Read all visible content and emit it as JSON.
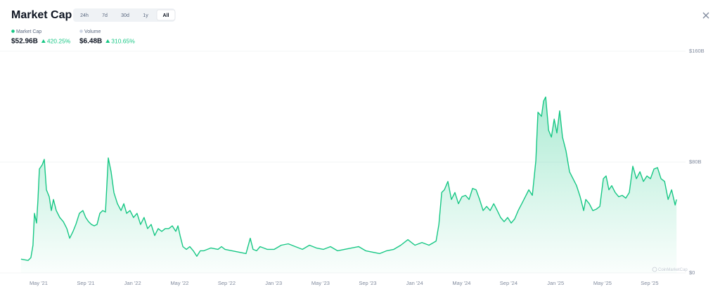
{
  "header": {
    "title": "Market Cap",
    "tabs": [
      "24h",
      "7d",
      "30d",
      "1y",
      "All"
    ],
    "active_tab": 4,
    "stats": [
      {
        "name": "Market Cap",
        "value": "$52.96B",
        "change": "420.25%",
        "color": "#16c784"
      },
      {
        "name": "Volume",
        "value": "$6.48B",
        "change": "310.65%",
        "color": "#cfd6e4"
      }
    ],
    "watermark": "CoinMarketCap"
  },
  "chart_data": {
    "type": "area",
    "x": [
      2021.208,
      2021.258,
      2021.278,
      2021.293,
      2021.303,
      2021.318,
      2021.328,
      2021.338,
      2021.358,
      2021.373,
      2021.388,
      2021.408,
      2021.423,
      2021.438,
      2021.458,
      2021.483,
      2021.508,
      2021.533,
      2021.553,
      2021.577,
      2021.597,
      2021.622,
      2021.647,
      2021.667,
      2021.687,
      2021.707,
      2021.727,
      2021.747,
      2021.767,
      2021.787,
      2021.807,
      2021.827,
      2021.847,
      2021.867,
      2021.892,
      2021.917,
      2021.937,
      2021.957,
      2021.981,
      2022.006,
      2022.031,
      2022.056,
      2022.081,
      2022.106,
      2022.131,
      2022.156,
      2022.181,
      2022.206,
      2022.231,
      2022.256,
      2022.281,
      2022.306,
      2022.321,
      2022.336,
      2022.356,
      2022.381,
      2022.405,
      2022.43,
      2022.455,
      2022.48,
      2022.505,
      2022.555,
      2022.605,
      2022.63,
      2022.655,
      2022.705,
      2022.755,
      2022.804,
      2022.834,
      2022.854,
      2022.879,
      2022.904,
      2022.954,
      2023.004,
      2023.054,
      2023.104,
      2023.154,
      2023.204,
      2023.254,
      2023.303,
      2023.353,
      2023.403,
      2023.453,
      2023.503,
      2023.553,
      2023.603,
      2023.653,
      2023.703,
      2023.752,
      2023.802,
      2023.852,
      2023.902,
      2023.952,
      2024.002,
      2024.052,
      2024.102,
      2024.152,
      2024.172,
      2024.192,
      2024.211,
      2024.236,
      2024.261,
      2024.286,
      2024.311,
      2024.336,
      2024.361,
      2024.386,
      2024.411,
      2024.436,
      2024.461,
      2024.486,
      2024.511,
      2024.536,
      2024.561,
      2024.586,
      2024.61,
      2024.635,
      2024.66,
      2024.685,
      2024.71,
      2024.735,
      2024.76,
      2024.785,
      2024.81,
      2024.835,
      2024.86,
      2024.875,
      2024.9,
      2024.915,
      2024.93,
      2024.95,
      2024.97,
      2024.99,
      2025.009,
      2025.029,
      2025.049,
      2025.074,
      2025.099,
      2025.124,
      2025.149,
      2025.174,
      2025.199,
      2025.214,
      2025.239,
      2025.264,
      2025.289,
      2025.314,
      2025.339,
      2025.358,
      2025.378,
      2025.398,
      2025.423,
      2025.448,
      2025.473,
      2025.498,
      2025.523,
      2025.548,
      2025.573,
      2025.598,
      2025.623,
      2025.648,
      2025.673,
      2025.698,
      2025.723,
      2025.748,
      2025.773,
      2025.798,
      2025.823,
      2025.848,
      2025.858
    ],
    "series": [
      {
        "name": "Market Cap",
        "color": "#16c784",
        "values": [
          10,
          9,
          11,
          20,
          43,
          36,
          53,
          75,
          78,
          82,
          60,
          55,
          45,
          53,
          45,
          40,
          37,
          32,
          25,
          30,
          35,
          43,
          45,
          40,
          37,
          35,
          34,
          35,
          43,
          45,
          44,
          83,
          73,
          58,
          50,
          45,
          50,
          43,
          45,
          40,
          43,
          35,
          40,
          32,
          35,
          27,
          32,
          30,
          32,
          32,
          34,
          30,
          34,
          27,
          19,
          17,
          19,
          16,
          12,
          16,
          16,
          18,
          17,
          19,
          17,
          16,
          15,
          14,
          25,
          17,
          16,
          19,
          17,
          17,
          20,
          21,
          19,
          17,
          20,
          18,
          17,
          19,
          16,
          17,
          18,
          19,
          16,
          15,
          14,
          16,
          17,
          20,
          24,
          20,
          22,
          20,
          23,
          35,
          58,
          60,
          66,
          53,
          58,
          50,
          55,
          56,
          53,
          61,
          60,
          53,
          45,
          48,
          45,
          50,
          45,
          40,
          37,
          40,
          36,
          39,
          45,
          50,
          55,
          60,
          56,
          81,
          116,
          113,
          124,
          127,
          103,
          98,
          111,
          101,
          117,
          98,
          88,
          73,
          68,
          63,
          55,
          45,
          53,
          50,
          45,
          46,
          48,
          68,
          70,
          60,
          63,
          58,
          55,
          56,
          54,
          58,
          77,
          68,
          73,
          66,
          70,
          68,
          75,
          76,
          68,
          66,
          53,
          60,
          49,
          53
        ]
      }
    ],
    "xlim": [
      2021.2,
      2025.86
    ],
    "xticks": [
      {
        "value": 2021.333,
        "label": "May '21"
      },
      {
        "value": 2021.667,
        "label": "Sep '21"
      },
      {
        "value": 2022.0,
        "label": "Jan '22"
      },
      {
        "value": 2022.333,
        "label": "May '22"
      },
      {
        "value": 2022.667,
        "label": "Sep '22"
      },
      {
        "value": 2023.0,
        "label": "Jan '23"
      },
      {
        "value": 2023.333,
        "label": "May '23"
      },
      {
        "value": 2023.667,
        "label": "Sep '23"
      },
      {
        "value": 2024.0,
        "label": "Jan '24"
      },
      {
        "value": 2024.333,
        "label": "May '24"
      },
      {
        "value": 2024.667,
        "label": "Sep '24"
      },
      {
        "value": 2025.0,
        "label": "Jan '25"
      },
      {
        "value": 2025.333,
        "label": "May '25"
      },
      {
        "value": 2025.667,
        "label": "Sep '25"
      }
    ],
    "ylim": [
      0,
      160
    ],
    "yticks": [
      {
        "value": 0,
        "label": "$0"
      },
      {
        "value": 80,
        "label": "$80B"
      },
      {
        "value": 160,
        "label": "$160B"
      }
    ],
    "grid": true
  }
}
